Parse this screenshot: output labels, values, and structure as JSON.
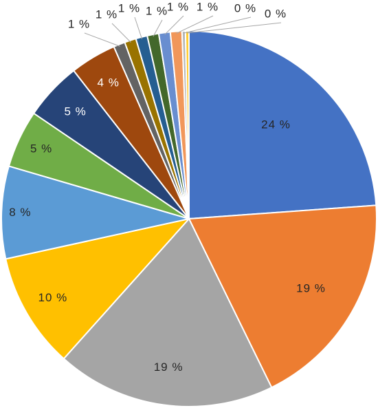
{
  "chart_data": {
    "type": "pie",
    "title": "",
    "legend": "none",
    "unit": "%",
    "slices": [
      {
        "value": 24,
        "label": "24 %",
        "color": "#4472C4"
      },
      {
        "value": 19,
        "label": "19 %",
        "color": "#ED7D31"
      },
      {
        "value": 19,
        "label": "19 %",
        "color": "#A5A5A5"
      },
      {
        "value": 10,
        "label": "10 %",
        "color": "#FFC000"
      },
      {
        "value": 8,
        "label": "8 %",
        "color": "#5B9BD5"
      },
      {
        "value": 5,
        "label": "5 %",
        "color": "#70AD47"
      },
      {
        "value": 5,
        "label": "5 %",
        "color": "#264478"
      },
      {
        "value": 4,
        "label": "4 %",
        "color": "#9E480E"
      },
      {
        "value": 1,
        "label": "1 %",
        "color": "#636363"
      },
      {
        "value": 1,
        "label": "1 %",
        "color": "#997300"
      },
      {
        "value": 1,
        "label": "1 %",
        "color": "#255E91"
      },
      {
        "value": 1,
        "label": "1 %",
        "color": "#43682B"
      },
      {
        "value": 1,
        "label": "1 %",
        "color": "#698ED0"
      },
      {
        "value": 1,
        "label": "1 %",
        "color": "#F1975A"
      },
      {
        "value": 0,
        "label": "0 %",
        "color": "#B7B7B7"
      },
      {
        "value": 0,
        "label": "0 %",
        "color": "#FFCD33"
      }
    ]
  }
}
